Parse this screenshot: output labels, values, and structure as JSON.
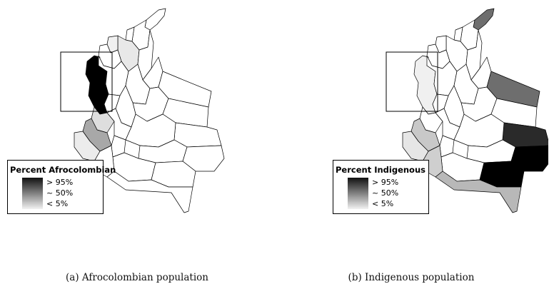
{
  "panels": [
    {
      "caption_label": "(a)",
      "caption_text": "Afrocolombian population",
      "legend": {
        "title": "Percent Afrocolombian",
        "labels": [
          "> 95%",
          "~ 50%",
          "< 5%"
        ]
      },
      "shading": {
        "pacific_coast": "high",
        "pacific_south": "medium",
        "caribbean_north": "low"
      }
    },
    {
      "caption_label": "(b)",
      "caption_text": "Indigenous population",
      "legend": {
        "title": "Percent Indigenous",
        "labels": [
          "> 95%",
          "~ 50%",
          "< 5%"
        ]
      },
      "shading": {
        "guajira": "medium-high",
        "vichada": "medium-high",
        "guainia": "very-high",
        "vaupes": "very-high",
        "amazonas": "medium-low"
      }
    }
  ],
  "colors": {
    "high": "#000000",
    "very_high": "#1a1a1a",
    "medium_high": "#6e6e6e",
    "medium": "#9a9a9a",
    "medium_low": "#b8b8b8",
    "low": "#e4e4e4",
    "none": "#ffffff"
  }
}
